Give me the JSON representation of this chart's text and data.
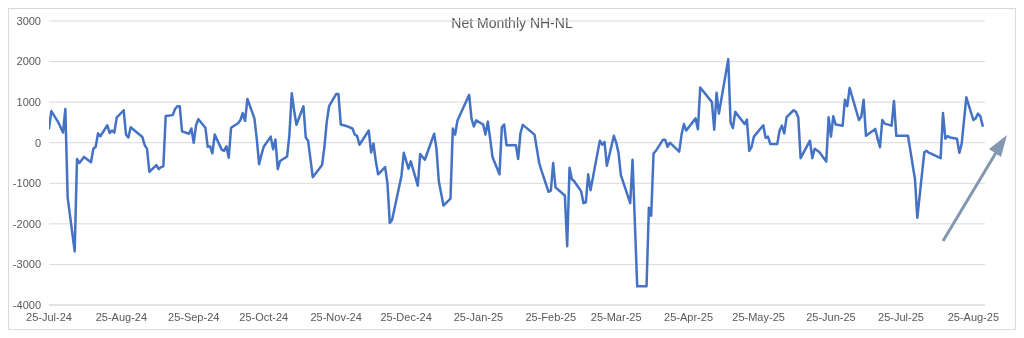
{
  "chart_data": {
    "type": "line",
    "title": "Net Monthly NH-NL",
    "x": [
      "2024-07-25",
      "2024-07-26",
      "2024-07-29",
      "2024-07-31",
      "2024-08-01",
      "2024-08-02",
      "2024-08-05",
      "2024-08-06",
      "2024-08-07",
      "2024-08-09",
      "2024-08-12",
      "2024-08-13",
      "2024-08-14",
      "2024-08-15",
      "2024-08-16",
      "2024-08-19",
      "2024-08-20",
      "2024-08-21",
      "2024-08-22",
      "2024-08-23",
      "2024-08-26",
      "2024-08-27",
      "2024-08-28",
      "2024-08-29",
      "2024-08-30",
      "2024-09-03",
      "2024-09-04",
      "2024-09-05",
      "2024-09-06",
      "2024-09-09",
      "2024-09-10",
      "2024-09-11",
      "2024-09-12",
      "2024-09-13",
      "2024-09-16",
      "2024-09-17",
      "2024-09-18",
      "2024-09-19",
      "2024-09-20",
      "2024-09-23",
      "2024-09-24",
      "2024-09-25",
      "2024-09-26",
      "2024-09-27",
      "2024-09-30",
      "2024-10-01",
      "2024-10-02",
      "2024-10-03",
      "2024-10-04",
      "2024-10-07",
      "2024-10-08",
      "2024-10-09",
      "2024-10-10",
      "2024-10-11",
      "2024-10-14",
      "2024-10-15",
      "2024-10-16",
      "2024-10-17",
      "2024-10-18",
      "2024-10-21",
      "2024-10-22",
      "2024-10-23",
      "2024-10-24",
      "2024-10-25",
      "2024-10-28",
      "2024-10-29",
      "2024-10-30",
      "2024-10-31",
      "2024-11-01",
      "2024-11-04",
      "2024-11-05",
      "2024-11-06",
      "2024-11-07",
      "2024-11-08",
      "2024-11-11",
      "2024-11-12",
      "2024-11-13",
      "2024-11-15",
      "2024-11-19",
      "2024-11-20",
      "2024-11-21",
      "2024-11-22",
      "2024-11-25",
      "2024-11-26",
      "2024-11-27",
      "2024-11-29",
      "2024-12-02",
      "2024-12-03",
      "2024-12-04",
      "2024-12-05",
      "2024-12-09",
      "2024-12-10",
      "2024-12-11",
      "2024-12-12",
      "2024-12-13",
      "2024-12-16",
      "2024-12-17",
      "2024-12-18",
      "2024-12-19",
      "2024-12-23",
      "2024-12-24",
      "2024-12-26",
      "2024-12-27",
      "2024-12-30",
      "2024-12-31",
      "2025-01-02",
      "2025-01-06",
      "2025-01-07",
      "2025-01-08",
      "2025-01-10",
      "2025-01-13",
      "2025-01-14",
      "2025-01-15",
      "2025-01-16",
      "2025-01-21",
      "2025-01-22",
      "2025-01-23",
      "2025-01-24",
      "2025-01-27",
      "2025-01-28",
      "2025-01-29",
      "2025-01-30",
      "2025-01-31",
      "2025-02-03",
      "2025-02-04",
      "2025-02-05",
      "2025-02-06",
      "2025-02-07",
      "2025-02-10",
      "2025-02-11",
      "2025-02-12",
      "2025-02-13",
      "2025-02-18",
      "2025-02-19",
      "2025-02-20",
      "2025-02-21",
      "2025-02-24",
      "2025-02-25",
      "2025-02-26",
      "2025-02-27",
      "2025-03-03",
      "2025-03-04",
      "2025-03-05",
      "2025-03-06",
      "2025-03-07",
      "2025-03-10",
      "2025-03-11",
      "2025-03-12",
      "2025-03-13",
      "2025-03-14",
      "2025-03-17",
      "2025-03-18",
      "2025-03-19",
      "2025-03-20",
      "2025-03-21",
      "2025-03-24",
      "2025-03-25",
      "2025-03-26",
      "2025-03-27",
      "2025-03-31",
      "2025-04-01",
      "2025-04-03",
      "2025-04-04",
      "2025-04-07",
      "2025-04-08",
      "2025-04-09",
      "2025-04-10",
      "2025-04-11",
      "2025-04-14",
      "2025-04-15",
      "2025-04-16",
      "2025-04-17",
      "2025-04-21",
      "2025-04-22",
      "2025-04-23",
      "2025-04-24",
      "2025-04-28",
      "2025-04-29",
      "2025-04-30",
      "2025-05-05",
      "2025-05-06",
      "2025-05-07",
      "2025-05-08",
      "2025-05-12",
      "2025-05-13",
      "2025-05-14",
      "2025-05-15",
      "2025-05-19",
      "2025-05-20",
      "2025-05-21",
      "2025-05-22",
      "2025-05-23",
      "2025-05-27",
      "2025-05-28",
      "2025-05-29",
      "2025-05-30",
      "2025-06-02",
      "2025-06-03",
      "2025-06-04",
      "2025-06-05",
      "2025-06-06",
      "2025-06-09",
      "2025-06-10",
      "2025-06-11",
      "2025-06-12",
      "2025-06-16",
      "2025-06-17",
      "2025-06-18",
      "2025-06-20",
      "2025-06-23",
      "2025-06-24",
      "2025-06-25",
      "2025-06-26",
      "2025-06-27",
      "2025-06-30",
      "2025-07-01",
      "2025-07-02",
      "2025-07-03",
      "2025-07-07",
      "2025-07-08",
      "2025-07-09",
      "2025-07-10",
      "2025-07-14",
      "2025-07-15",
      "2025-07-16",
      "2025-07-17",
      "2025-07-18",
      "2025-07-21",
      "2025-07-22",
      "2025-07-23",
      "2025-07-24",
      "2025-07-25",
      "2025-07-28",
      "2025-07-31",
      "2025-08-01",
      "2025-08-04",
      "2025-08-05",
      "2025-08-06",
      "2025-08-07",
      "2025-08-08",
      "2025-08-11",
      "2025-08-12",
      "2025-08-13",
      "2025-08-14",
      "2025-08-15",
      "2025-08-18",
      "2025-08-19",
      "2025-08-20",
      "2025-08-22",
      "2025-08-25",
      "2025-08-26",
      "2025-08-27",
      "2025-08-28",
      "2025-08-29"
    ],
    "series": [
      {
        "color": "#4472c4",
        "values": [
          350,
          780,
          500,
          250,
          830,
          -1350,
          -2680,
          -400,
          -500,
          -350,
          -480,
          -150,
          -100,
          230,
          160,
          430,
          240,
          300,
          250,
          620,
          800,
          200,
          130,
          380,
          330,
          140,
          -60,
          -150,
          -720,
          -550,
          -650,
          -600,
          -580,
          660,
          680,
          830,
          900,
          900,
          280,
          220,
          350,
          0,
          430,
          580,
          370,
          -100,
          -90,
          -260,
          200,
          -170,
          -200,
          -90,
          -370,
          370,
          480,
          560,
          730,
          540,
          1080,
          600,
          100,
          -530,
          -300,
          -100,
          150,
          -160,
          80,
          -650,
          -450,
          -340,
          200,
          1220,
          800,
          440,
          900,
          130,
          50,
          -850,
          -550,
          -100,
          520,
          900,
          1200,
          1200,
          450,
          420,
          350,
          200,
          170,
          -50,
          300,
          -240,
          -20,
          -450,
          -780,
          -600,
          -1000,
          -1980,
          -1900,
          -820,
          -250,
          -640,
          -460,
          -1060,
          -280,
          -420,
          220,
          -150,
          -950,
          -1550,
          -1380,
          350,
          200,
          550,
          1180,
          600,
          400,
          550,
          450,
          200,
          520,
          100,
          -350,
          -780,
          380,
          450,
          -60,
          -60,
          -60,
          -400,
          240,
          440,
          200,
          -150,
          -500,
          -690,
          -1210,
          -1180,
          -500,
          -1100,
          -1300,
          -2550,
          -620,
          -900,
          -950,
          -1200,
          -1490,
          -1470,
          -780,
          -1170,
          -250,
          50,
          -50,
          20,
          -570,
          170,
          0,
          -250,
          -800,
          -1490,
          -420,
          -3540,
          -3540,
          -3540,
          -1600,
          -1800,
          -260,
          -200,
          70,
          70,
          -100,
          0,
          -220,
          200,
          460,
          300,
          600,
          330,
          1360,
          1000,
          320,
          1230,
          720,
          2060,
          500,
          360,
          760,
          460,
          570,
          -200,
          -100,
          150,
          430,
          120,
          150,
          -30,
          -30,
          300,
          420,
          230,
          630,
          800,
          760,
          630,
          -380,
          50,
          -380,
          -150,
          -230,
          -460,
          630,
          150,
          650,
          450,
          420,
          1060,
          900,
          1350,
          560,
          640,
          1060,
          170,
          340,
          100,
          -110,
          560,
          470,
          420,
          1030,
          170,
          170,
          170,
          170,
          -900,
          -1850,
          -230,
          -200,
          -250,
          -270,
          -300,
          -380,
          730,
          100,
          160,
          130,
          100,
          -250,
          -30,
          1120,
          560,
          600,
          720,
          650,
          420
        ]
      }
    ],
    "xlim": [
      "2024-07-25",
      "2025-08-30"
    ],
    "xticks": [
      {
        "value": "2024-07-25",
        "label": "25-Jul-24"
      },
      {
        "value": "2024-08-25",
        "label": "25-Aug-24"
      },
      {
        "value": "2024-09-25",
        "label": "25-Sep-24"
      },
      {
        "value": "2024-10-25",
        "label": "25-Oct-24"
      },
      {
        "value": "2024-11-25",
        "label": "25-Nov-24"
      },
      {
        "value": "2024-12-25",
        "label": "25-Dec-24"
      },
      {
        "value": "2025-01-25",
        "label": "25-Jan-25"
      },
      {
        "value": "2025-02-25",
        "label": "25-Feb-25"
      },
      {
        "value": "2025-03-25",
        "label": "25-Mar-25"
      },
      {
        "value": "2025-04-25",
        "label": "25-Apr-25"
      },
      {
        "value": "2025-05-25",
        "label": "25-May-25"
      },
      {
        "value": "2025-06-25",
        "label": "25-Jun-25"
      },
      {
        "value": "2025-07-25",
        "label": "25-Jul-25"
      },
      {
        "value": "2025-08-25",
        "label": "25-Aug-25"
      }
    ],
    "ylim": [
      -4000,
      3000
    ],
    "yticks": [
      -4000,
      -3000,
      -2000,
      -1000,
      0,
      1000,
      2000,
      3000
    ],
    "grid": "y",
    "marker": "none",
    "line_style": "solid"
  }
}
